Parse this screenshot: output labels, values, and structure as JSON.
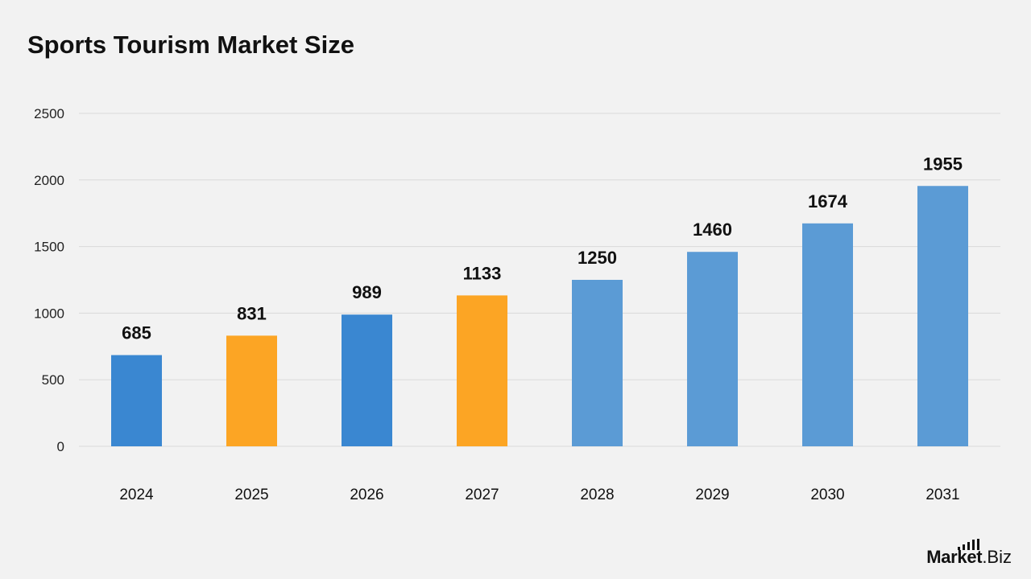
{
  "chart_data": {
    "type": "bar",
    "title": "Sports Tourism Market Size",
    "categories": [
      "2024",
      "2025",
      "2026",
      "2027",
      "2028",
      "2029",
      "2030",
      "2031"
    ],
    "values": [
      685,
      831,
      989,
      1133,
      1250,
      1460,
      1674,
      1955
    ],
    "bar_colors": [
      "#3a87d1",
      "#fca524",
      "#3a87d1",
      "#fca524",
      "#5b9bd5",
      "#5b9bd5",
      "#5b9bd5",
      "#5b9bd5"
    ],
    "ylim": [
      0,
      2500
    ],
    "yticks": [
      "0",
      "500",
      "1000",
      "1500",
      "2000",
      "2500"
    ],
    "grid": true,
    "data_labels": true
  },
  "logo": {
    "name": "Market",
    "tld": ".Biz"
  }
}
